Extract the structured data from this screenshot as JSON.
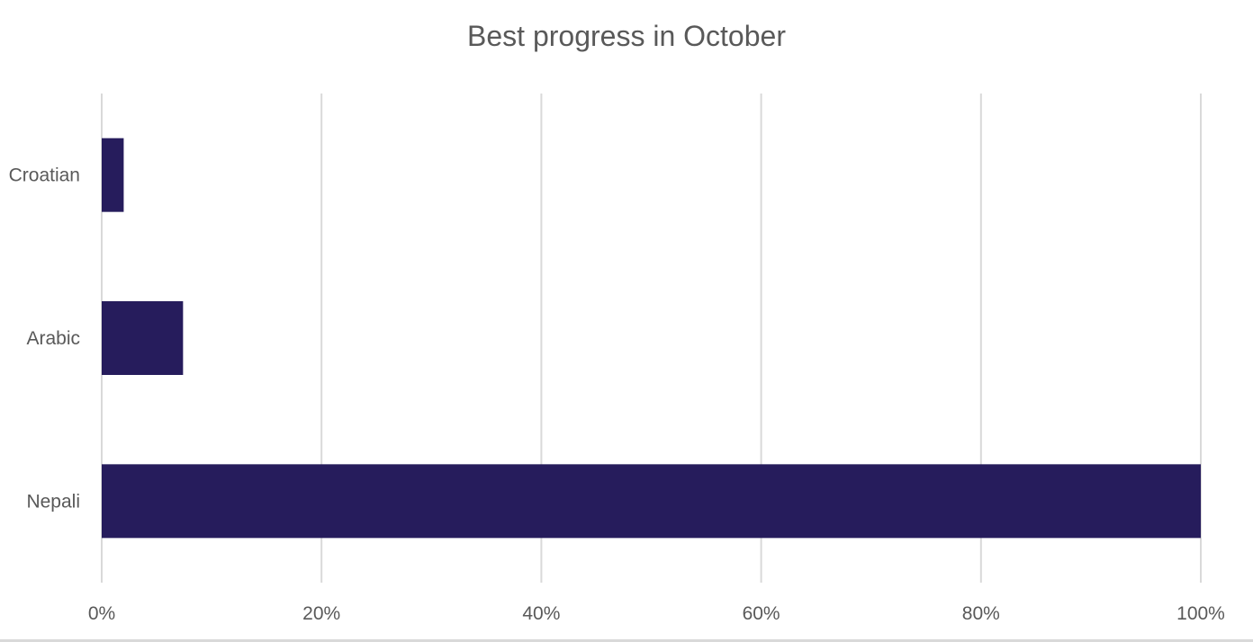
{
  "chart_data": {
    "type": "bar",
    "orientation": "horizontal",
    "title": "Best progress in October",
    "xlabel": "",
    "ylabel": "",
    "categories": [
      "Croatian",
      "Arabic",
      "Nepali"
    ],
    "values": [
      2,
      7.4,
      100
    ],
    "xlim": [
      0,
      100
    ],
    "x_ticks": [
      "0%",
      "20%",
      "40%",
      "60%",
      "80%",
      "100%"
    ],
    "x_tick_values": [
      0,
      20,
      40,
      60,
      80,
      100
    ],
    "grid": true,
    "legend": "none",
    "bar_color": "#261C5C",
    "grid_color": "#d9d9d9",
    "text_color": "#595959"
  }
}
